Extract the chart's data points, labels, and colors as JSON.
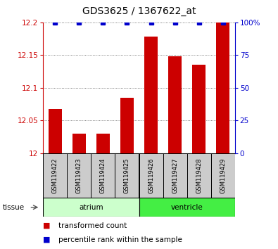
{
  "title": "GDS3625 / 1367622_at",
  "samples": [
    "GSM119422",
    "GSM119423",
    "GSM119424",
    "GSM119425",
    "GSM119426",
    "GSM119427",
    "GSM119428",
    "GSM119429"
  ],
  "red_values": [
    12.068,
    12.03,
    12.03,
    12.085,
    12.178,
    12.148,
    12.135,
    12.2
  ],
  "blue_values": [
    100,
    100,
    100,
    100,
    100,
    100,
    100,
    100
  ],
  "ylim_left": [
    12.0,
    12.2
  ],
  "ylim_right": [
    0,
    100
  ],
  "yticks_left": [
    12.0,
    12.05,
    12.1,
    12.15,
    12.2
  ],
  "yticks_right": [
    0,
    25,
    50,
    75,
    100
  ],
  "ytick_labels_left": [
    "12",
    "12.05",
    "12.1",
    "12.15",
    "12.2"
  ],
  "ytick_labels_right": [
    "0",
    "25",
    "50",
    "75",
    "100%"
  ],
  "groups": [
    {
      "label": "atrium",
      "samples": [
        0,
        1,
        2,
        3
      ],
      "color": "#ccffcc"
    },
    {
      "label": "ventricle",
      "samples": [
        4,
        5,
        6,
        7
      ],
      "color": "#44ee44"
    }
  ],
  "bar_color": "#cc0000",
  "blue_color": "#0000cc",
  "bar_width": 0.55,
  "grid_color": "#555555",
  "background_color": "#ffffff",
  "sample_box_color": "#cccccc",
  "left_axis_color": "#cc0000",
  "right_axis_color": "#0000cc",
  "title_fontsize": 10,
  "tick_fontsize": 7.5,
  "label_fontsize": 7.5,
  "legend_fontsize": 7.5,
  "sample_fontsize": 6.0
}
